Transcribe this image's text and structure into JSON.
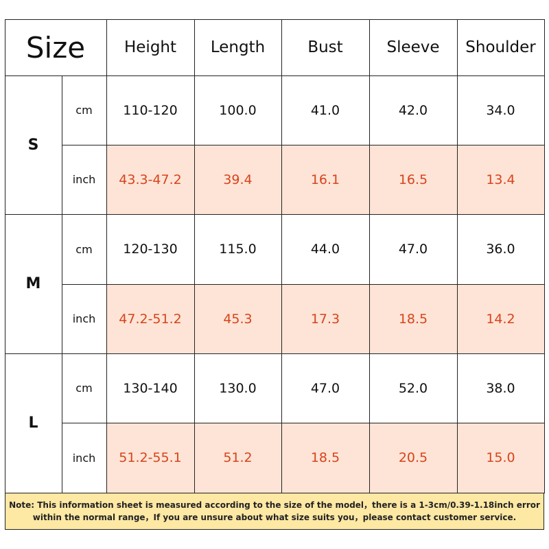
{
  "table": {
    "header": [
      "Size",
      "Height",
      "Length",
      "Bust",
      "Sleeve",
      "Shoulder"
    ],
    "groups": [
      {
        "size": "S",
        "rows": [
          {
            "unit": "cm",
            "values": [
              "110-120",
              "100.0",
              "41.0",
              "42.0",
              "34.0"
            ]
          },
          {
            "unit": "inch",
            "values": [
              "43.3-47.2",
              "39.4",
              "16.1",
              "16.5",
              "13.4"
            ]
          }
        ]
      },
      {
        "size": "M",
        "rows": [
          {
            "unit": "cm",
            "values": [
              "120-130",
              "115.0",
              "44.0",
              "47.0",
              "36.0"
            ]
          },
          {
            "unit": "inch",
            "values": [
              "47.2-51.2",
              "45.3",
              "17.3",
              "18.5",
              "14.2"
            ]
          }
        ]
      },
      {
        "size": "L",
        "rows": [
          {
            "unit": "cm",
            "values": [
              "130-140",
              "130.0",
              "47.0",
              "52.0",
              "38.0"
            ]
          },
          {
            "unit": "inch",
            "values": [
              "51.2-55.1",
              "51.2",
              "18.5",
              "20.5",
              "15.0"
            ]
          }
        ]
      }
    ]
  },
  "note": "Note: This information sheet is measured according to the size of the model，there is a 1-3cm/0.39-1.18inch error within the normal range，If you are unsure about what size suits you，please contact customer service."
}
